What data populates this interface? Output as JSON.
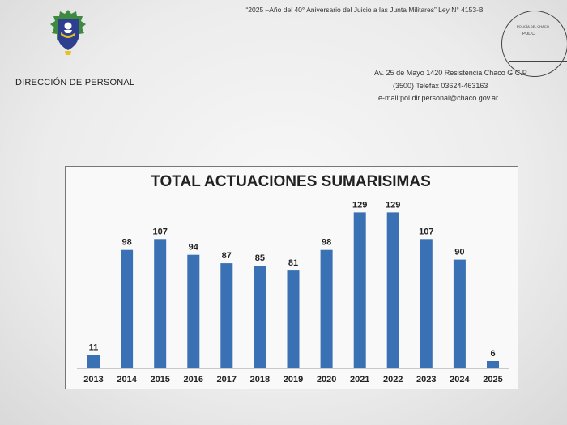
{
  "header": {
    "motto": "“2025 –Año del 40° Aniversario del Juicio a las Junta Militares” Ley N° 4153-B",
    "department": "DIRECCIÓN DE PERSONAL",
    "address_line_1": "Av. 25 de Mayo 1420 Resistencia Chaco  G.C.P",
    "address_line_2": "(3500) Telefax 03624-463163",
    "address_line_3": "e-mail:pol.dir.personal@chaco.gov.ar"
  },
  "seal": {
    "line_1": "POLICÍA DEL CHACO",
    "line_2": "POLIC"
  },
  "colors": {
    "bar": "#3a70b4",
    "logo_blue": "#2f3f8f",
    "logo_green": "#3e8a3e",
    "logo_yellow": "#e8c21a"
  },
  "icons": {
    "logo": "police-shield-emblem",
    "seal": "circular-stamp"
  },
  "chart_data": {
    "type": "bar",
    "title": "TOTAL ACTUACIONES SUMARISIMAS",
    "categories": [
      "2013",
      "2014",
      "2015",
      "2016",
      "2017",
      "2018",
      "2019",
      "2020",
      "2021",
      "2022",
      "2023",
      "2024",
      "2025"
    ],
    "values": [
      11,
      98,
      107,
      94,
      87,
      85,
      81,
      98,
      129,
      129,
      107,
      90,
      6
    ],
    "xlabel": "",
    "ylabel": "",
    "ylim": [
      0,
      140
    ],
    "grid": false,
    "legend": "none",
    "data_labels": true
  }
}
